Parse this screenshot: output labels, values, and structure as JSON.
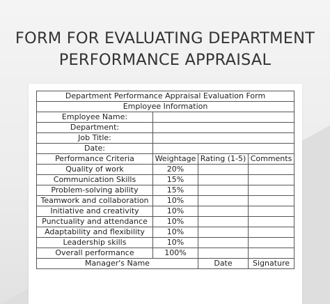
{
  "heading": {
    "line1": "FORM FOR EVALUATING DEPARTMENT",
    "line2": "PERFORMANCE APPRAISAL"
  },
  "form": {
    "title": "Department Performance Appraisal Evaluation Form",
    "section": "Employee Information",
    "info_fields": [
      {
        "label": "Employee Name:",
        "value": ""
      },
      {
        "label": "Department:",
        "value": ""
      },
      {
        "label": "Job Title:",
        "value": ""
      },
      {
        "label": "Date:",
        "value": ""
      }
    ],
    "columns": [
      "Performance Criteria",
      "Weightage",
      "Rating (1-5)",
      "Comments"
    ],
    "criteria": [
      {
        "name": "Quality of work",
        "weight": "20%",
        "rating": "",
        "comments": ""
      },
      {
        "name": "Communication Skills",
        "weight": "15%",
        "rating": "",
        "comments": ""
      },
      {
        "name": "Problem-solving ability",
        "weight": "15%",
        "rating": "",
        "comments": ""
      },
      {
        "name": "Teamwork and collaboration",
        "weight": "10%",
        "rating": "",
        "comments": ""
      },
      {
        "name": "Initiative and creativity",
        "weight": "10%",
        "rating": "",
        "comments": ""
      },
      {
        "name": "Punctuality and attendance",
        "weight": "10%",
        "rating": "",
        "comments": ""
      },
      {
        "name": "Adaptability and flexibility",
        "weight": "10%",
        "rating": "",
        "comments": ""
      },
      {
        "name": "Leadership skills",
        "weight": "10%",
        "rating": "",
        "comments": ""
      }
    ],
    "overall": {
      "label": "Overall performance",
      "weight": "100%"
    },
    "signoff": {
      "manager": "Manager's Name",
      "date": "Date",
      "signature": "Signature"
    }
  }
}
